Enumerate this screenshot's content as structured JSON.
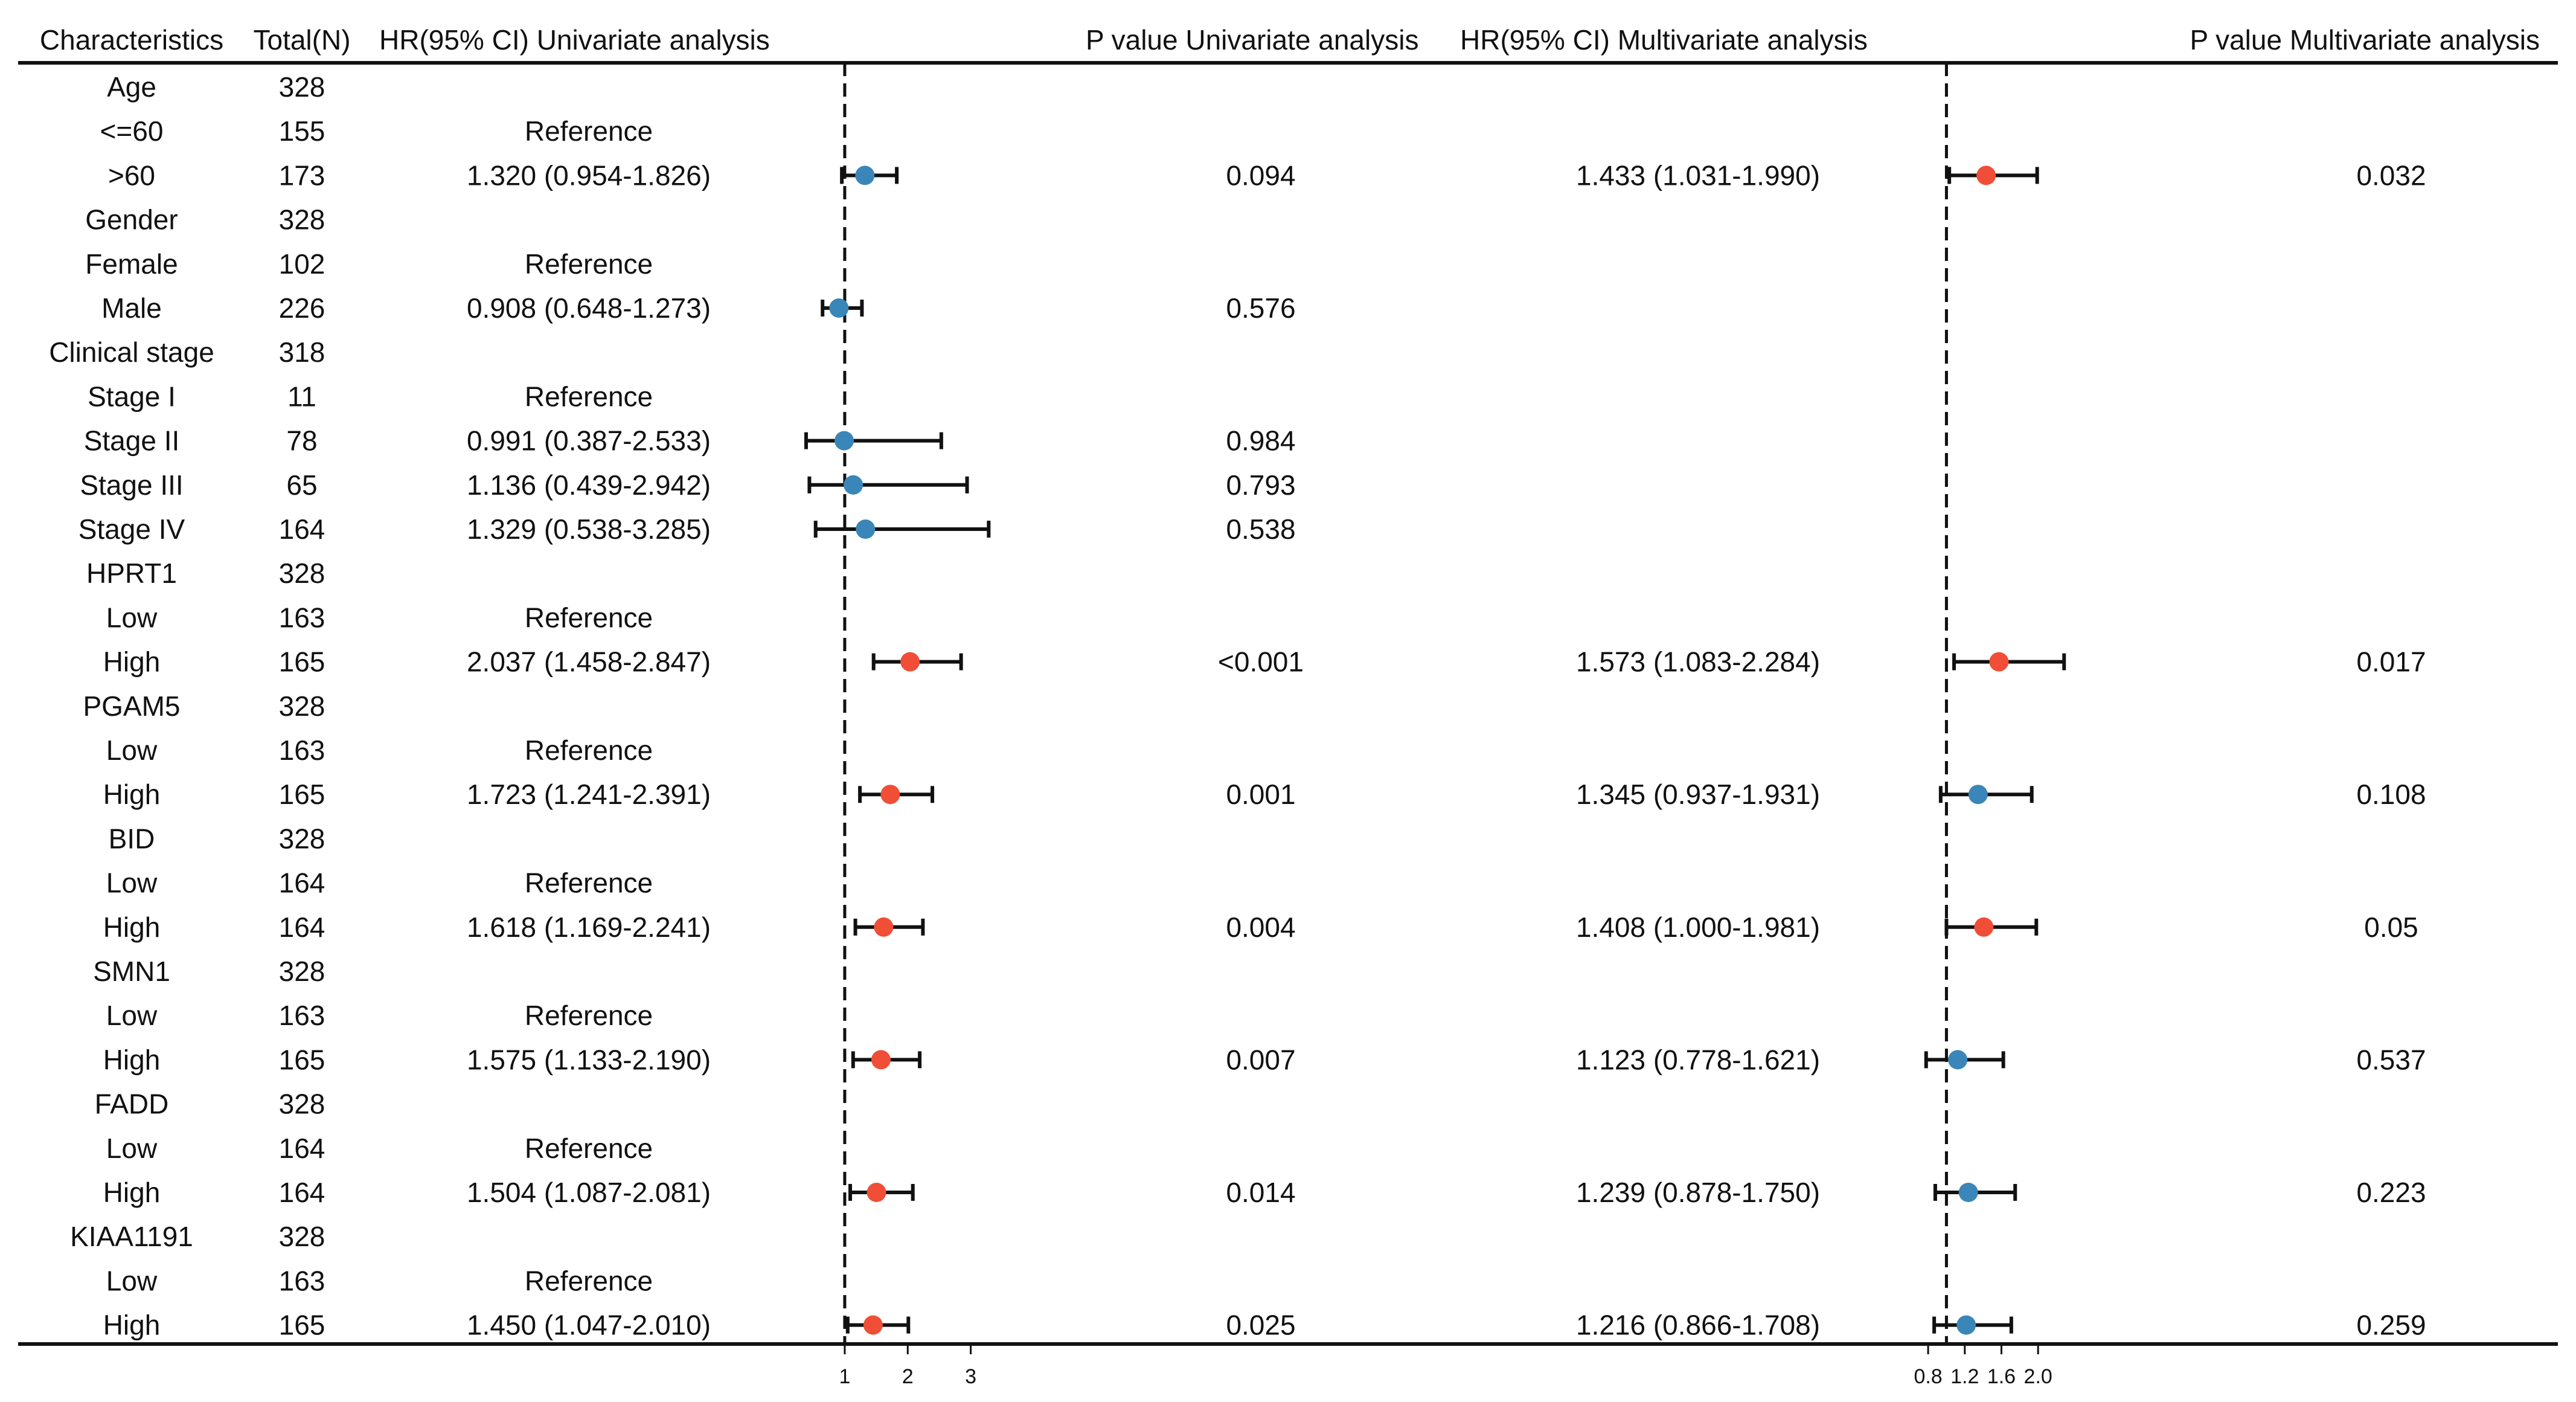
{
  "columns": {
    "characteristics": "Characteristics",
    "total": "Total(N)",
    "hr_uni": "HR(95% CI) Univariate analysis",
    "p_uni": "P value Univariate analysis",
    "hr_multi": "HR(95% CI) Multivariate analysis",
    "p_multi": "P value Multivariate analysis"
  },
  "colors": {
    "significant": "#f04e37",
    "not_significant": "#3a86b8",
    "line": "#111111"
  },
  "chart_data": {
    "type": "forest",
    "title": "",
    "reference_value": 1,
    "panels": [
      {
        "name": "Univariate analysis",
        "xlim": [
          0.627,
          4.94
        ],
        "ticks": [
          1,
          2,
          3
        ],
        "tick_labels": [
          "1",
          "2",
          "3"
        ]
      },
      {
        "name": "Multivariate analysis",
        "xlim": [
          0.516,
          3.35
        ],
        "ticks": [
          0.8,
          1.2,
          1.6,
          2.0
        ],
        "tick_labels": [
          "0.8",
          "1.2",
          "1.6",
          "2.0"
        ]
      }
    ],
    "rows": [
      {
        "label": "Age",
        "n": "328",
        "hr_uni_text": "",
        "p_uni_text": "",
        "hr_multi_text": "",
        "p_multi_text": "",
        "uni": null,
        "multi": null
      },
      {
        "label": "<=60",
        "n": "155",
        "hr_uni_text": "Reference",
        "p_uni_text": "",
        "hr_multi_text": "",
        "p_multi_text": "",
        "uni": null,
        "multi": null
      },
      {
        "label": ">60",
        "n": "173",
        "hr_uni_text": "1.320 (0.954-1.826)",
        "p_uni_text": "0.094",
        "hr_multi_text": "1.433 (1.031-1.990)",
        "p_multi_text": "0.032",
        "uni": {
          "hr": 1.32,
          "lo": 0.954,
          "hi": 1.826,
          "sig": false
        },
        "multi": {
          "hr": 1.433,
          "lo": 1.031,
          "hi": 1.99,
          "sig": true
        }
      },
      {
        "label": "Gender",
        "n": "328",
        "hr_uni_text": "",
        "p_uni_text": "",
        "hr_multi_text": "",
        "p_multi_text": "",
        "uni": null,
        "multi": null
      },
      {
        "label": "Female",
        "n": "102",
        "hr_uni_text": "Reference",
        "p_uni_text": "",
        "hr_multi_text": "",
        "p_multi_text": "",
        "uni": null,
        "multi": null
      },
      {
        "label": "Male",
        "n": "226",
        "hr_uni_text": "0.908 (0.648-1.273)",
        "p_uni_text": "0.576",
        "hr_multi_text": "",
        "p_multi_text": "",
        "uni": {
          "hr": 0.908,
          "lo": 0.648,
          "hi": 1.273,
          "sig": false
        },
        "multi": null
      },
      {
        "label": "Clinical stage",
        "n": "318",
        "hr_uni_text": "",
        "p_uni_text": "",
        "hr_multi_text": "",
        "p_multi_text": "",
        "uni": null,
        "multi": null
      },
      {
        "label": "Stage I",
        "n": "11",
        "hr_uni_text": "Reference",
        "p_uni_text": "",
        "hr_multi_text": "",
        "p_multi_text": "",
        "uni": null,
        "multi": null
      },
      {
        "label": "Stage II",
        "n": "78",
        "hr_uni_text": "0.991 (0.387-2.533)",
        "p_uni_text": "0.984",
        "hr_multi_text": "",
        "p_multi_text": "",
        "uni": {
          "hr": 0.991,
          "lo": 0.387,
          "hi": 2.533,
          "sig": false
        },
        "multi": null
      },
      {
        "label": "Stage III",
        "n": "65",
        "hr_uni_text": "1.136 (0.439-2.942)",
        "p_uni_text": "0.793",
        "hr_multi_text": "",
        "p_multi_text": "",
        "uni": {
          "hr": 1.136,
          "lo": 0.439,
          "hi": 2.942,
          "sig": false
        },
        "multi": null
      },
      {
        "label": "Stage IV",
        "n": "164",
        "hr_uni_text": "1.329 (0.538-3.285)",
        "p_uni_text": "0.538",
        "hr_multi_text": "",
        "p_multi_text": "",
        "uni": {
          "hr": 1.329,
          "lo": 0.538,
          "hi": 3.285,
          "sig": false
        },
        "multi": null
      },
      {
        "label": "HPRT1",
        "n": "328",
        "hr_uni_text": "",
        "p_uni_text": "",
        "hr_multi_text": "",
        "p_multi_text": "",
        "uni": null,
        "multi": null
      },
      {
        "label": "Low",
        "n": "163",
        "hr_uni_text": "Reference",
        "p_uni_text": "",
        "hr_multi_text": "",
        "p_multi_text": "",
        "uni": null,
        "multi": null
      },
      {
        "label": "High",
        "n": "165",
        "hr_uni_text": "2.037 (1.458-2.847)",
        "p_uni_text": "<0.001",
        "hr_multi_text": "1.573 (1.083-2.284)",
        "p_multi_text": "0.017",
        "uni": {
          "hr": 2.037,
          "lo": 1.458,
          "hi": 2.847,
          "sig": true
        },
        "multi": {
          "hr": 1.573,
          "lo": 1.083,
          "hi": 2.284,
          "sig": true
        }
      },
      {
        "label": "PGAM5",
        "n": "328",
        "hr_uni_text": "",
        "p_uni_text": "",
        "hr_multi_text": "",
        "p_multi_text": "",
        "uni": null,
        "multi": null
      },
      {
        "label": "Low",
        "n": "163",
        "hr_uni_text": "Reference",
        "p_uni_text": "",
        "hr_multi_text": "",
        "p_multi_text": "",
        "uni": null,
        "multi": null
      },
      {
        "label": "High",
        "n": "165",
        "hr_uni_text": "1.723 (1.241-2.391)",
        "p_uni_text": "0.001",
        "hr_multi_text": "1.345 (0.937-1.931)",
        "p_multi_text": "0.108",
        "uni": {
          "hr": 1.723,
          "lo": 1.241,
          "hi": 2.391,
          "sig": true
        },
        "multi": {
          "hr": 1.345,
          "lo": 0.937,
          "hi": 1.931,
          "sig": false
        }
      },
      {
        "label": "BID",
        "n": "328",
        "hr_uni_text": "",
        "p_uni_text": "",
        "hr_multi_text": "",
        "p_multi_text": "",
        "uni": null,
        "multi": null
      },
      {
        "label": "Low",
        "n": "164",
        "hr_uni_text": "Reference",
        "p_uni_text": "",
        "hr_multi_text": "",
        "p_multi_text": "",
        "uni": null,
        "multi": null
      },
      {
        "label": "High",
        "n": "164",
        "hr_uni_text": "1.618 (1.169-2.241)",
        "p_uni_text": "0.004",
        "hr_multi_text": "1.408 (1.000-1.981)",
        "p_multi_text": "0.05",
        "uni": {
          "hr": 1.618,
          "lo": 1.169,
          "hi": 2.241,
          "sig": true
        },
        "multi": {
          "hr": 1.408,
          "lo": 1.0,
          "hi": 1.981,
          "sig": true
        }
      },
      {
        "label": "SMN1",
        "n": "328",
        "hr_uni_text": "",
        "p_uni_text": "",
        "hr_multi_text": "",
        "p_multi_text": "",
        "uni": null,
        "multi": null
      },
      {
        "label": "Low",
        "n": "163",
        "hr_uni_text": "Reference",
        "p_uni_text": "",
        "hr_multi_text": "",
        "p_multi_text": "",
        "uni": null,
        "multi": null
      },
      {
        "label": "High",
        "n": "165",
        "hr_uni_text": "1.575 (1.133-2.190)",
        "p_uni_text": "0.007",
        "hr_multi_text": "1.123 (0.778-1.621)",
        "p_multi_text": "0.537",
        "uni": {
          "hr": 1.575,
          "lo": 1.133,
          "hi": 2.19,
          "sig": true
        },
        "multi": {
          "hr": 1.123,
          "lo": 0.778,
          "hi": 1.621,
          "sig": false
        }
      },
      {
        "label": "FADD",
        "n": "328",
        "hr_uni_text": "",
        "p_uni_text": "",
        "hr_multi_text": "",
        "p_multi_text": "",
        "uni": null,
        "multi": null
      },
      {
        "label": "Low",
        "n": "164",
        "hr_uni_text": "Reference",
        "p_uni_text": "",
        "hr_multi_text": "",
        "p_multi_text": "",
        "uni": null,
        "multi": null
      },
      {
        "label": "High",
        "n": "164",
        "hr_uni_text": "1.504 (1.087-2.081)",
        "p_uni_text": "0.014",
        "hr_multi_text": "1.239 (0.878-1.750)",
        "p_multi_text": "0.223",
        "uni": {
          "hr": 1.504,
          "lo": 1.087,
          "hi": 2.081,
          "sig": true
        },
        "multi": {
          "hr": 1.239,
          "lo": 0.878,
          "hi": 1.75,
          "sig": false
        }
      },
      {
        "label": "KIAA1191",
        "n": "328",
        "hr_uni_text": "",
        "p_uni_text": "",
        "hr_multi_text": "",
        "p_multi_text": "",
        "uni": null,
        "multi": null
      },
      {
        "label": "Low",
        "n": "163",
        "hr_uni_text": "Reference",
        "p_uni_text": "",
        "hr_multi_text": "",
        "p_multi_text": "",
        "uni": null,
        "multi": null
      },
      {
        "label": "High",
        "n": "165",
        "hr_uni_text": "1.450 (1.047-2.010)",
        "p_uni_text": "0.025",
        "hr_multi_text": "1.216 (0.866-1.708)",
        "p_multi_text": "0.259",
        "uni": {
          "hr": 1.45,
          "lo": 1.047,
          "hi": 2.01,
          "sig": true
        },
        "multi": {
          "hr": 1.216,
          "lo": 0.866,
          "hi": 1.708,
          "sig": false
        }
      }
    ]
  }
}
